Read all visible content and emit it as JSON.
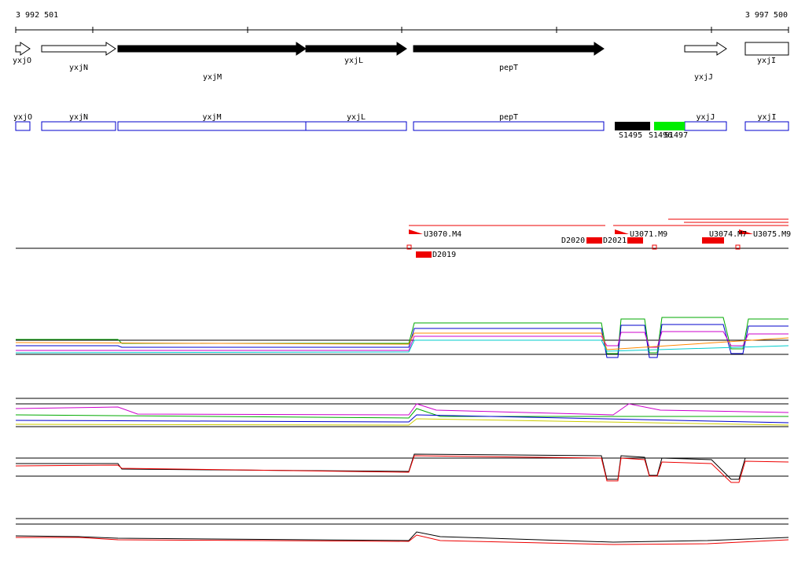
{
  "ruler": {
    "start": "3 992 501",
    "end": "3 997 500"
  },
  "gene_arrows": [
    {
      "label": "yxjO"
    },
    {
      "label": "yxjN"
    },
    {
      "label": "yxjM"
    },
    {
      "label": "yxjL"
    },
    {
      "label": "pepT"
    },
    {
      "label": "yxjJ"
    },
    {
      "label": "yxjI"
    }
  ],
  "gene_boxes": [
    {
      "label": "yxjO"
    },
    {
      "label": "yxjN"
    },
    {
      "label": "yxjM"
    },
    {
      "label": "yxjL"
    },
    {
      "label": "pepT"
    },
    {
      "label": "yxjJ"
    },
    {
      "label": "yxjI"
    }
  ],
  "segments": [
    {
      "label": "S1495"
    },
    {
      "label": "S1496"
    },
    {
      "label": "S1497"
    }
  ],
  "features": [
    {
      "label": "U3070.M4"
    },
    {
      "label": "D2019"
    },
    {
      "label": "D2020"
    },
    {
      "label": "D2021"
    },
    {
      "label": "U3071.M9"
    },
    {
      "label": "U3074.M7"
    },
    {
      "label": "U3075.M9"
    }
  ]
}
